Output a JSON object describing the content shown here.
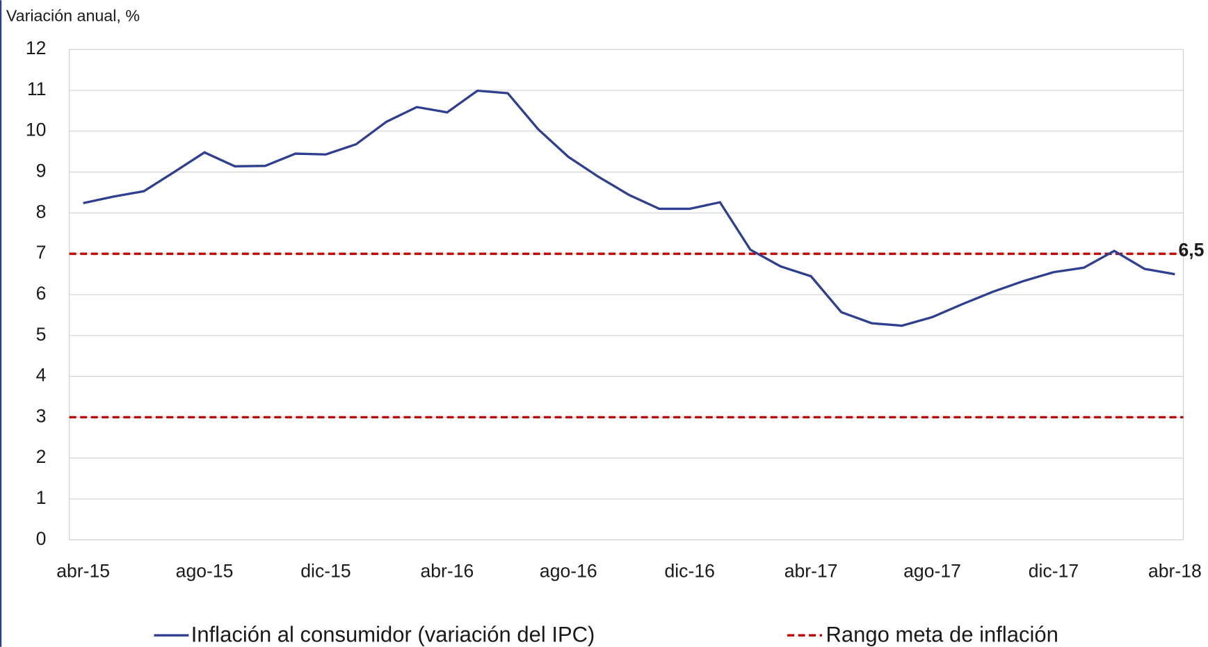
{
  "chart_data": {
    "type": "line",
    "y_label": "Variación anual, %",
    "categories": [
      "abr-15",
      null,
      null,
      null,
      "ago-15",
      null,
      null,
      null,
      "dic-15",
      null,
      null,
      null,
      "abr-16",
      null,
      null,
      null,
      "ago-16",
      null,
      null,
      null,
      "dic-16",
      null,
      null,
      null,
      "abr-17",
      null,
      null,
      null,
      "ago-17",
      null,
      null,
      null,
      "dic-17",
      null,
      null,
      null,
      "abr-18"
    ],
    "series": [
      {
        "name": "Inflación al consumidor (variación del IPC)",
        "color": "#2e3f8f",
        "values": [
          8.24,
          8.4,
          8.53,
          9.0,
          9.48,
          9.14,
          9.15,
          9.45,
          9.43,
          9.68,
          10.23,
          10.59,
          10.46,
          10.99,
          10.93,
          10.05,
          9.37,
          8.88,
          8.44,
          8.1,
          8.1,
          8.26,
          7.1,
          6.69,
          6.45,
          5.57,
          5.3,
          5.24,
          5.45,
          5.77,
          6.07,
          6.33,
          6.55,
          6.66,
          7.07,
          6.63,
          6.5
        ],
        "value_labels": [
          null,
          null,
          null,
          null,
          null,
          null,
          null,
          null,
          null,
          null,
          null,
          null,
          null,
          null,
          null,
          null,
          null,
          null,
          null,
          null,
          null,
          null,
          null,
          null,
          null,
          null,
          null,
          null,
          null,
          null,
          null,
          null,
          null,
          null,
          null,
          null,
          "6,5"
        ]
      }
    ],
    "target_lines": {
      "name": "Rango meta de inflación",
      "color": "#c00000",
      "values": [
        7,
        3
      ]
    },
    "ylim": [
      0,
      12
    ],
    "yticks": [
      0,
      1,
      2,
      3,
      4,
      5,
      6,
      7,
      8,
      9,
      10,
      11,
      12
    ],
    "grid": true
  }
}
